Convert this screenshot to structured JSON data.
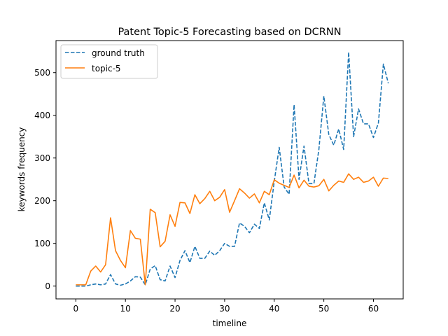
{
  "chart_data": {
    "type": "line",
    "title": "Patent Topic-5 Forecasting based on DCRNN",
    "xlabel": "timeline",
    "ylabel": "keywords frequency",
    "xlim": [
      -4,
      66
    ],
    "ylim": [
      -30,
      575
    ],
    "xticks": [
      0,
      10,
      20,
      30,
      40,
      50,
      60
    ],
    "yticks": [
      0,
      100,
      200,
      300,
      400,
      500
    ],
    "grid": false,
    "legend_position": "upper-left",
    "x": [
      0,
      1,
      2,
      3,
      4,
      5,
      6,
      7,
      8,
      9,
      10,
      11,
      12,
      13,
      14,
      15,
      16,
      17,
      18,
      19,
      20,
      21,
      22,
      23,
      24,
      25,
      26,
      27,
      28,
      29,
      30,
      31,
      32,
      33,
      34,
      35,
      36,
      37,
      38,
      39,
      40,
      41,
      42,
      43,
      44,
      45,
      46,
      47,
      48,
      49,
      50,
      51,
      52,
      53,
      54,
      55,
      56,
      57,
      58,
      59,
      60,
      61,
      62,
      63
    ],
    "series": [
      {
        "name": "ground truth",
        "color": "#1f77b4",
        "style": "dashed",
        "values": [
          0,
          0,
          0,
          3,
          5,
          3,
          5,
          27,
          5,
          2,
          5,
          12,
          22,
          21,
          3,
          40,
          48,
          15,
          12,
          47,
          20,
          60,
          83,
          55,
          93,
          65,
          65,
          82,
          72,
          83,
          100,
          93,
          93,
          148,
          140,
          125,
          145,
          135,
          195,
          155,
          245,
          325,
          232,
          215,
          425,
          250,
          328,
          240,
          240,
          320,
          445,
          355,
          330,
          368,
          320,
          548,
          350,
          415,
          380,
          380,
          348,
          382,
          520,
          475
        ]
      },
      {
        "name": "topic-5",
        "color": "#ff7f0e",
        "style": "solid",
        "values": [
          3,
          3,
          3,
          35,
          47,
          33,
          50,
          160,
          83,
          60,
          43,
          130,
          112,
          110,
          3,
          180,
          172,
          92,
          105,
          167,
          140,
          196,
          195,
          170,
          214,
          193,
          205,
          222,
          200,
          208,
          226,
          173,
          200,
          228,
          218,
          206,
          216,
          195,
          222,
          214,
          249,
          241,
          236,
          231,
          260,
          230,
          248,
          234,
          232,
          235,
          250,
          223,
          236,
          246,
          243,
          263,
          250,
          255,
          243,
          246,
          255,
          234,
          253,
          252
        ]
      }
    ]
  }
}
